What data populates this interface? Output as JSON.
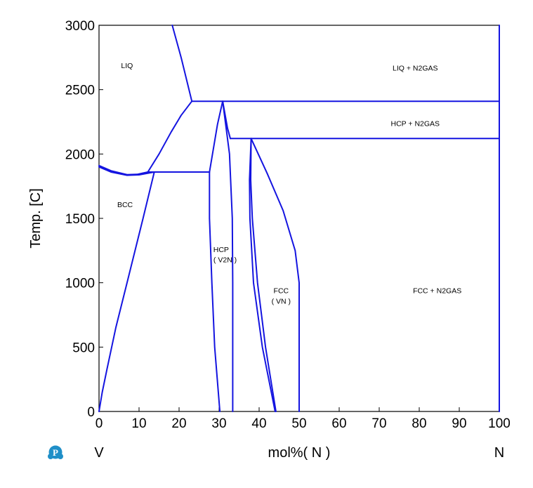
{
  "chart_data": {
    "type": "line",
    "title": "",
    "xlabel": "mol%( N )",
    "ylabel": "Temp.  [C]",
    "xlim": [
      0,
      100
    ],
    "ylim": [
      0,
      3000
    ],
    "x_ticks": [
      0,
      10,
      20,
      30,
      40,
      50,
      60,
      70,
      80,
      90,
      100
    ],
    "y_ticks": [
      0,
      500,
      1000,
      1500,
      2000,
      2500,
      3000
    ],
    "grid": false,
    "left_component": "V",
    "right_component": "N",
    "line_color": "#1414e0",
    "logo_color": "#1f8fc8",
    "logo_icon": "pandat-logo-icon",
    "region_labels": [
      {
        "text": "LIQ",
        "x": 7,
        "y": 2690
      },
      {
        "text": "LIQ + N2GAS",
        "x": 79,
        "y": 2670
      },
      {
        "text": "HCP + N2GAS",
        "x": 79,
        "y": 2240
      },
      {
        "text": "BCC",
        "x": 6.5,
        "y": 1610
      },
      {
        "text": "HCP",
        "x": 30.5,
        "y": 1260
      },
      {
        "text": "( V2N )",
        "x": 31.5,
        "y": 1180
      },
      {
        "text": "FCC",
        "x": 45.5,
        "y": 940
      },
      {
        "text": "( VN )",
        "x": 45.5,
        "y": 860
      },
      {
        "text": "FCC + N2GAS",
        "x": 84.5,
        "y": 940
      }
    ],
    "series": [
      {
        "points": [
          [
            18.3,
            3000
          ],
          [
            20.5,
            2750
          ],
          [
            23.2,
            2410
          ]
        ]
      },
      {
        "points": [
          [
            23.2,
            2410
          ],
          [
            100,
            2410
          ]
        ]
      },
      {
        "points": [
          [
            12.2,
            1860
          ],
          [
            15,
            2000
          ],
          [
            18,
            2170
          ],
          [
            20.5,
            2300
          ],
          [
            23.2,
            2410
          ]
        ]
      },
      {
        "points": [
          [
            0,
            1910
          ],
          [
            3,
            1870
          ],
          [
            7,
            1840
          ],
          [
            9.5,
            1842
          ],
          [
            12.2,
            1860
          ]
        ]
      },
      {
        "points": [
          [
            0,
            1900
          ],
          [
            3,
            1860
          ],
          [
            7,
            1835
          ],
          [
            10,
            1838
          ],
          [
            13.8,
            1860
          ]
        ]
      },
      {
        "points": [
          [
            12.2,
            1860
          ],
          [
            27.6,
            1860
          ]
        ]
      },
      {
        "points": [
          [
            13.8,
            1860
          ],
          [
            11,
            1500
          ],
          [
            7,
            1000
          ],
          [
            4.2,
            650
          ],
          [
            2,
            330
          ],
          [
            0.8,
            150
          ],
          [
            0,
            0
          ]
        ]
      },
      {
        "points": [
          [
            27.6,
            1860
          ],
          [
            29.6,
            2230
          ],
          [
            30.9,
            2410
          ]
        ]
      },
      {
        "points": [
          [
            30.9,
            2410
          ],
          [
            32.1,
            2200
          ],
          [
            32.8,
            2120
          ]
        ]
      },
      {
        "points": [
          [
            32.8,
            2120
          ],
          [
            100,
            2120
          ]
        ]
      },
      {
        "points": [
          [
            27.6,
            1860
          ],
          [
            27.6,
            1500
          ],
          [
            28.2,
            1000
          ],
          [
            28.9,
            500
          ],
          [
            30.2,
            0
          ]
        ]
      },
      {
        "points": [
          [
            30.9,
            2410
          ],
          [
            32.6,
            2000
          ],
          [
            33.3,
            1500
          ],
          [
            33.4,
            1000
          ],
          [
            33.4,
            0
          ]
        ]
      },
      {
        "points": [
          [
            38,
            2120
          ],
          [
            37.6,
            1800
          ],
          [
            37.7,
            1500
          ],
          [
            38.6,
            1000
          ],
          [
            40.8,
            500
          ],
          [
            44,
            0
          ]
        ]
      },
      {
        "points": [
          [
            38,
            2120
          ],
          [
            37.9,
            1800
          ],
          [
            38.3,
            1500
          ],
          [
            39.6,
            1000
          ],
          [
            41.6,
            500
          ],
          [
            44.2,
            0
          ]
        ]
      },
      {
        "points": [
          [
            38,
            2120
          ],
          [
            42,
            1850
          ],
          [
            46,
            1560
          ],
          [
            49,
            1250
          ],
          [
            50,
            1000
          ],
          [
            50,
            0
          ]
        ]
      },
      {
        "points": [
          [
            100,
            0
          ],
          [
            100,
            3000
          ]
        ]
      }
    ]
  }
}
